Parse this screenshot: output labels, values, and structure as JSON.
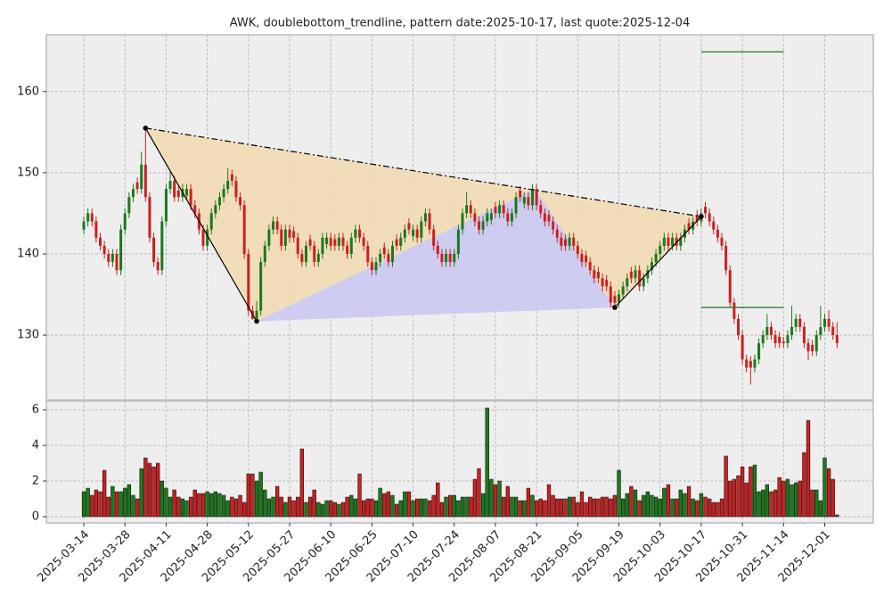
{
  "chart_data": [
    {
      "type": "candlestick",
      "title": "AWK, doublebottom_trendline, pattern date:2025-10-17, last quote:2025-12-04",
      "up_color": "#1a7a1a",
      "down_color": "#cc2020",
      "xlim": [
        -9.1,
        191.8
      ],
      "ylim": [
        122,
        167
      ],
      "yticks": [
        130,
        140,
        150,
        160
      ],
      "grid": true,
      "xticks": [
        {
          "value": 0,
          "label": "2025-03-14"
        },
        {
          "value": 10,
          "label": "2025-03-28"
        },
        {
          "value": 20,
          "label": "2025-04-11"
        },
        {
          "value": 30,
          "label": "2025-04-28"
        },
        {
          "value": 40,
          "label": "2025-05-12"
        },
        {
          "value": 50,
          "label": "2025-05-27"
        },
        {
          "value": 60,
          "label": "2025-06-10"
        },
        {
          "value": 70,
          "label": "2025-06-25"
        },
        {
          "value": 80,
          "label": "2025-07-10"
        },
        {
          "value": 90,
          "label": "2025-07-24"
        },
        {
          "value": 100,
          "label": "2025-08-07"
        },
        {
          "value": 110,
          "label": "2025-08-21"
        },
        {
          "value": 120,
          "label": "2025-09-05"
        },
        {
          "value": 130,
          "label": "2025-09-19"
        },
        {
          "value": 140,
          "label": "2025-10-03"
        },
        {
          "value": 150,
          "label": "2025-10-17"
        },
        {
          "value": 160,
          "label": "2025-10-31"
        },
        {
          "value": 170,
          "label": "2025-11-14"
        },
        {
          "value": 180,
          "label": "2025-12-01"
        }
      ],
      "open": [
        143,
        144,
        145,
        144,
        142,
        141,
        140,
        139,
        140,
        138,
        143,
        145,
        147,
        148.8,
        148,
        151,
        147,
        142,
        139,
        138,
        144,
        148,
        149,
        147.8,
        147,
        147.2,
        148,
        146,
        145,
        143,
        141,
        143,
        145,
        146,
        147,
        148,
        149.8,
        149,
        147,
        146,
        140,
        133,
        132,
        133,
        139,
        141,
        143,
        144,
        143,
        141,
        143,
        142.8,
        142,
        140,
        139,
        141.8,
        141,
        139,
        140,
        141.2,
        142,
        141.8,
        141,
        142,
        141,
        140,
        142,
        143,
        142,
        141,
        139,
        138,
        139,
        140.8,
        140,
        139,
        141.8,
        141,
        142,
        143.8,
        142.2,
        143,
        142,
        144,
        145,
        143,
        141,
        140,
        139,
        140,
        139,
        140,
        143,
        145,
        146,
        145,
        144,
        143,
        144,
        144.2,
        145.8,
        145,
        146,
        145,
        144,
        145,
        147.8,
        146.2,
        147,
        146,
        148,
        146,
        145,
        144.8,
        144,
        143,
        142,
        141.8,
        141,
        142,
        141,
        140,
        139.8,
        139,
        138,
        137.8,
        137,
        136.8,
        136,
        134.8,
        134,
        135,
        136,
        137.8,
        137,
        138,
        136,
        137,
        138,
        139,
        140,
        141,
        142,
        141,
        142,
        141,
        142,
        143.8,
        143,
        144.8,
        144,
        145.8,
        145,
        144,
        143,
        142,
        141,
        138,
        134,
        132,
        130,
        127,
        126.8,
        126,
        127,
        129,
        130,
        131,
        130,
        129.8,
        129.2,
        129,
        130,
        131,
        132,
        131,
        129,
        128.8,
        128,
        130,
        131,
        132,
        131,
        130
      ],
      "high": [
        144.6,
        145.6,
        145.6,
        144.6,
        142.6,
        141.6,
        140.6,
        140.6,
        140.6,
        143.6,
        145.6,
        147.6,
        148.6,
        149.4,
        152.6,
        155.5,
        147.6,
        142.6,
        139.6,
        144.6,
        148.6,
        150.1,
        149.6,
        148.4,
        148.6,
        148.6,
        148.6,
        146.6,
        145.6,
        143.6,
        143.6,
        145.6,
        146.6,
        147.6,
        148.6,
        150.6,
        150.4,
        149.6,
        147.6,
        146.6,
        140.6,
        133.6,
        134.2,
        139.6,
        141.6,
        143.6,
        144.6,
        144.6,
        143.6,
        143.6,
        143.6,
        143.4,
        142.6,
        140.6,
        141.6,
        142.4,
        141.6,
        140.6,
        142.6,
        142.6,
        142.6,
        142.4,
        142.6,
        142.6,
        141.6,
        142.6,
        143.6,
        143.6,
        142.6,
        141.6,
        139.6,
        139.6,
        140.6,
        141.4,
        140.6,
        141.6,
        142.4,
        142.6,
        143.6,
        144.4,
        143.6,
        143.6,
        144.6,
        145.6,
        145.6,
        143.6,
        141.6,
        140.6,
        140.6,
        140.6,
        140.6,
        143.6,
        145.6,
        147.6,
        146.6,
        145.6,
        144.6,
        144.6,
        145.6,
        145.6,
        146.4,
        146.6,
        146.6,
        145.6,
        145.6,
        147.6,
        148.4,
        147.6,
        147.6,
        148.6,
        148.6,
        146.6,
        145.6,
        145.4,
        144.6,
        143.6,
        142.6,
        142.4,
        142.6,
        142.6,
        141.6,
        140.6,
        140.4,
        139.6,
        138.6,
        138.4,
        137.6,
        137.4,
        136.6,
        135.4,
        135.6,
        136.6,
        137.6,
        138.4,
        138.6,
        138.6,
        137.6,
        138.6,
        139.6,
        140.6,
        141.6,
        142.6,
        142.6,
        142.6,
        142.6,
        142.6,
        143.6,
        144.4,
        144.6,
        145.4,
        145.6,
        146.4,
        145.6,
        144.6,
        143.6,
        142.6,
        141.6,
        138.6,
        134.6,
        132.6,
        130.6,
        127.6,
        127.4,
        127.6,
        129.6,
        130.6,
        132.6,
        131.6,
        130.6,
        130.4,
        129.8,
        130.6,
        133.6,
        132.6,
        132.6,
        131.6,
        129.6,
        129.4,
        130.6,
        133.6,
        132.6,
        133.1,
        131.6,
        131.6
      ],
      "low": [
        142.4,
        143.4,
        143.4,
        141.4,
        140.4,
        139.4,
        138.4,
        138.4,
        137.4,
        137.4,
        142.4,
        144.4,
        146.4,
        147.4,
        147.4,
        146.4,
        141.4,
        138.4,
        137.4,
        137.4,
        143.4,
        147.4,
        146.4,
        146.4,
        146.4,
        146.6,
        145.4,
        144.4,
        142.4,
        140.4,
        140.4,
        142.4,
        144.4,
        145.4,
        146.4,
        147.4,
        148.4,
        146.4,
        145.4,
        139.4,
        132.4,
        131.9,
        131.7,
        132.4,
        138.4,
        140.4,
        142.4,
        142.4,
        140.4,
        140.4,
        141.4,
        141.4,
        139.4,
        138.4,
        138.4,
        140.4,
        138.4,
        138.4,
        139.4,
        140.6,
        140.4,
        140.4,
        140.4,
        140.4,
        139.4,
        139.4,
        141.4,
        141.4,
        140.4,
        138.4,
        137.4,
        137.4,
        138.4,
        139.4,
        138.4,
        138.4,
        140.4,
        140.4,
        141.4,
        142.4,
        141.6,
        141.4,
        141.4,
        143.4,
        142.4,
        140.4,
        139.4,
        138.4,
        138.4,
        138.4,
        138.4,
        139.4,
        142.4,
        144.4,
        144.4,
        143.4,
        142.4,
        142.4,
        143.4,
        143.6,
        144.4,
        144.4,
        144.4,
        143.4,
        143.4,
        144.4,
        146.4,
        145.6,
        145.4,
        145.4,
        145.4,
        144.4,
        143.4,
        143.4,
        142.4,
        141.4,
        140.4,
        140.4,
        140.4,
        140.4,
        139.4,
        138.4,
        138.4,
        137.4,
        136.4,
        136.4,
        135.4,
        135.4,
        133.4,
        133.4,
        133.4,
        134.4,
        135.4,
        136.4,
        136.4,
        135.4,
        135.4,
        136.4,
        137.4,
        138.4,
        139.4,
        140.4,
        140.4,
        140.4,
        140.4,
        140.4,
        141.4,
        142.4,
        142.4,
        143.4,
        143.4,
        144.4,
        143.4,
        142.4,
        141.4,
        140.4,
        137.4,
        133.4,
        131.4,
        129.4,
        126.4,
        125.4,
        123.9,
        125.4,
        126.4,
        128.4,
        129.4,
        129.4,
        128.4,
        128.4,
        128.4,
        128.4,
        129.4,
        130.4,
        130.4,
        128.4,
        126.9,
        127.4,
        127.4,
        129.4,
        130.4,
        130.4,
        129.4,
        128.4
      ],
      "close": [
        144,
        145,
        144,
        142,
        141,
        140,
        139,
        140,
        138,
        143,
        145,
        147,
        148,
        148,
        151,
        147,
        142,
        139,
        138,
        144,
        148,
        149,
        147,
        147,
        148,
        148,
        146,
        145,
        143,
        141,
        143,
        145,
        146,
        147,
        148,
        149,
        149,
        147,
        146,
        140,
        133,
        132,
        133,
        139,
        141,
        143,
        144,
        143,
        141,
        143,
        142,
        142,
        140,
        139,
        141,
        141,
        139,
        140,
        142,
        142,
        141,
        141,
        142,
        141,
        140,
        142,
        143,
        142,
        141,
        139,
        138,
        139,
        140,
        140,
        139,
        141,
        141,
        142,
        143,
        143,
        143,
        142,
        144,
        145,
        143,
        141,
        140,
        139,
        140,
        139,
        140,
        143,
        145,
        146,
        145,
        144,
        143,
        144,
        145,
        145,
        145,
        146,
        145,
        144,
        145,
        147,
        147,
        147,
        146,
        148,
        146,
        145,
        144,
        144,
        143,
        142,
        141,
        141,
        142,
        141,
        140,
        139,
        139,
        138,
        137,
        137,
        136,
        136,
        134,
        134,
        135,
        136,
        137,
        137,
        138,
        136,
        137,
        138,
        139,
        140,
        141,
        142,
        141,
        142,
        141,
        142,
        143,
        143,
        144,
        144,
        145,
        145,
        144,
        143,
        142,
        141,
        138,
        134,
        132,
        130,
        127,
        126,
        126,
        127,
        129,
        130,
        131,
        130,
        129,
        129,
        129,
        130,
        131,
        132,
        131,
        129,
        128,
        128,
        130,
        131,
        132,
        131,
        130,
        129
      ],
      "pattern": {
        "fill": "#f2d9b0",
        "inner_fill": "#c8c6f0",
        "points": [
          {
            "x": 15,
            "y": 155.5
          },
          {
            "x": 42,
            "y": 131.7
          },
          {
            "x": 129,
            "y": 133.4
          },
          {
            "x": 150,
            "y": 144.6
          }
        ],
        "peak": {
          "x": 109.5,
          "y": 148
        }
      },
      "levels": [
        {
          "y": 164.9,
          "x": [
            150,
            170
          ],
          "color": "#1a7a1a"
        },
        {
          "y": 133.4,
          "x": [
            150,
            170
          ],
          "color": "#1a7a1a"
        }
      ]
    },
    {
      "type": "bar",
      "ylim": [
        -0.35,
        6.5
      ],
      "yticks": [
        0,
        2,
        4,
        6
      ],
      "grid": true,
      "values": [
        1.4,
        1.6,
        1.2,
        1.5,
        1.4,
        2.6,
        1.1,
        1.7,
        1.4,
        1.4,
        1.6,
        1.8,
        1.2,
        1.0,
        2.7,
        3.3,
        3.0,
        2.8,
        3.0,
        2.0,
        1.6,
        1.1,
        1.5,
        1.1,
        1.0,
        0.9,
        1.1,
        1.5,
        1.3,
        1.3,
        1.4,
        1.3,
        1.4,
        1.3,
        1.2,
        0.9,
        1.1,
        1.0,
        1.2,
        0.8,
        2.4,
        2.4,
        2.0,
        2.5,
        1.5,
        1.0,
        1.1,
        1.7,
        1.1,
        0.8,
        1.1,
        0.9,
        1.1,
        3.8,
        0.8,
        1.1,
        1.5,
        0.8,
        0.7,
        0.9,
        0.9,
        0.8,
        0.7,
        0.8,
        1.1,
        1.2,
        1.0,
        2.4,
        0.9,
        1.0,
        1.0,
        0.9,
        1.6,
        1.3,
        1.4,
        1.2,
        0.7,
        0.9,
        1.4,
        1.4,
        0.9,
        1.0,
        1.0,
        1.0,
        0.9,
        1.2,
        1.9,
        0.8,
        1.1,
        1.2,
        1.2,
        0.9,
        1.1,
        1.1,
        1.1,
        2.1,
        2.7,
        1.3,
        6.1,
        2.1,
        1.8,
        2.0,
        1.1,
        1.7,
        1.1,
        1.1,
        0.9,
        0.9,
        1.6,
        1.2,
        0.9,
        1.0,
        0.9,
        1.8,
        1.2,
        1.0,
        1.0,
        1.0,
        1.1,
        1.1,
        0.8,
        1.4,
        0.8,
        1.1,
        1.0,
        1.0,
        1.1,
        1.1,
        1.0,
        1.2,
        2.6,
        1.0,
        1.3,
        1.7,
        1.5,
        0.9,
        1.2,
        1.4,
        1.2,
        1.1,
        1.0,
        1.6,
        1.8,
        1.0,
        1.0,
        1.5,
        1.3,
        1.7,
        1.0,
        0.9,
        1.3,
        1.1,
        1.0,
        0.8,
        0.8,
        1.0,
        3.4,
        2.0,
        2.1,
        2.3,
        2.8,
        1.9,
        2.8,
        2.9,
        1.4,
        1.5,
        1.8,
        1.4,
        1.5,
        2.2,
        2.0,
        2.1,
        1.8,
        1.9,
        2.0,
        3.6,
        5.4,
        1.5,
        1.5,
        0.9,
        3.3,
        2.7,
        2.1,
        0.1
      ]
    }
  ]
}
